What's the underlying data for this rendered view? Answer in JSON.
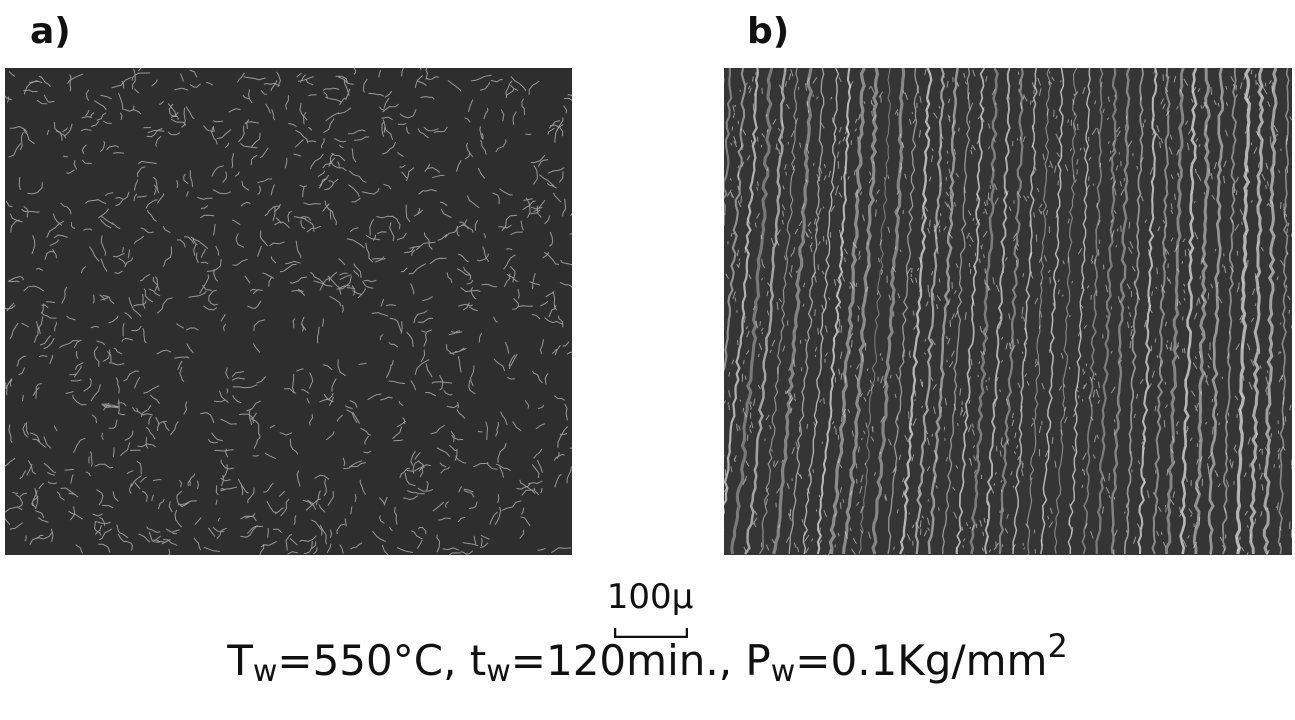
{
  "panels": {
    "a": {
      "label": "a)"
    },
    "b": {
      "label": "b)"
    }
  },
  "scale": {
    "text": "100μ"
  },
  "caption": {
    "t_sym": "T",
    "t_sub": "w",
    "t_val": "=550°C, ",
    "time_sym": "t",
    "time_sub": "w",
    "time_val": "=120min., ",
    "p_sym": "P",
    "p_sub": "w",
    "p_val": "=0.1Kg/mm",
    "p_exp": "2"
  },
  "colors": {
    "background": "#ffffff",
    "panel_a_base": "#2e2e2e",
    "panel_b_base": "#353535",
    "highlight": "#d8d8d8"
  }
}
